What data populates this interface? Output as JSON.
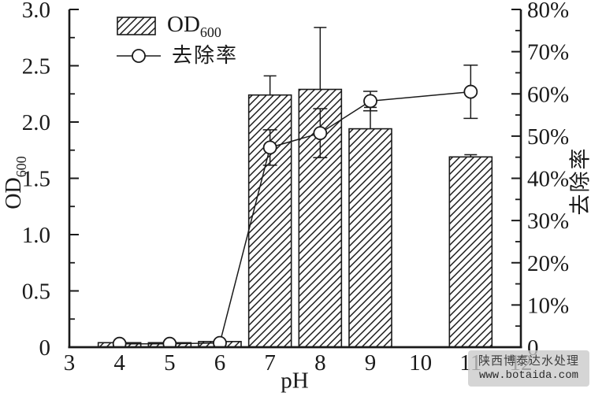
{
  "chart_data": {
    "type": "bar",
    "subtype": "dual-axis bar + line with error bars",
    "title": "",
    "grid": false,
    "x_axis": {
      "label": "pH",
      "min": 3,
      "max": 12,
      "ticks": [
        3,
        4,
        5,
        6,
        7,
        8,
        9,
        10,
        11,
        12
      ]
    },
    "y_left": {
      "label": "OD600",
      "min": 0,
      "max": 3.0,
      "major_ticks": [
        0,
        0.5,
        1.0,
        1.5,
        2.0,
        2.5,
        3.0
      ],
      "tick_labels": [
        "0",
        "0.5",
        "1.0",
        "1.5",
        "2.0",
        "2.5",
        "3.0"
      ],
      "minor_ticks": [
        0.25,
        0.75,
        1.25,
        1.75,
        2.25,
        2.75
      ]
    },
    "y_right": {
      "label": "去除率",
      "min": 0,
      "max": 80,
      "major_ticks": [
        0,
        10,
        20,
        30,
        40,
        50,
        60,
        70,
        80
      ],
      "tick_labels": [
        "0",
        "10%",
        "20%",
        "30%",
        "40%",
        "50%",
        "60%",
        "70%",
        "80%"
      ],
      "minor_ticks": [
        5,
        15,
        25,
        35,
        45,
        55,
        65,
        75
      ]
    },
    "series": [
      {
        "name": "OD600",
        "type": "bar",
        "axis": "left",
        "style": "hatched",
        "x": [
          4,
          5,
          6,
          7,
          8,
          9,
          11
        ],
        "values": [
          0.04,
          0.04,
          0.05,
          2.24,
          2.29,
          1.94,
          1.69
        ],
        "errors_plus": [
          0,
          0,
          0,
          0.17,
          0.55,
          0.19,
          0.02
        ]
      },
      {
        "name": "去除率",
        "type": "line",
        "axis": "right",
        "marker": "open-circle",
        "x": [
          4,
          5,
          6,
          7,
          8,
          9,
          11
        ],
        "values": [
          0.8,
          0.8,
          1.0,
          47.3,
          50.7,
          58.3,
          60.5
        ],
        "errors": [
          0,
          0,
          0,
          4.2,
          5.8,
          2.3,
          6.3
        ]
      }
    ],
    "legend": {
      "position": "top-left",
      "items": [
        "OD600",
        "去除率"
      ]
    }
  },
  "axes": {
    "left_title_main": "OD",
    "left_title_sub": "600",
    "right_title": "去除率",
    "x_title": "pH"
  },
  "legend": {
    "od_main": "OD",
    "od_sub": "600",
    "removal_label": "去除率"
  },
  "watermark": {
    "line1": "陕西博泰达水处理",
    "line2": "www.botaida.com"
  },
  "colors": {
    "ink": "#1a1a1a",
    "marker_fill": "#ffffff",
    "watermark_bg": "#c9c9c9",
    "watermark_text": "#3d3d3d"
  }
}
